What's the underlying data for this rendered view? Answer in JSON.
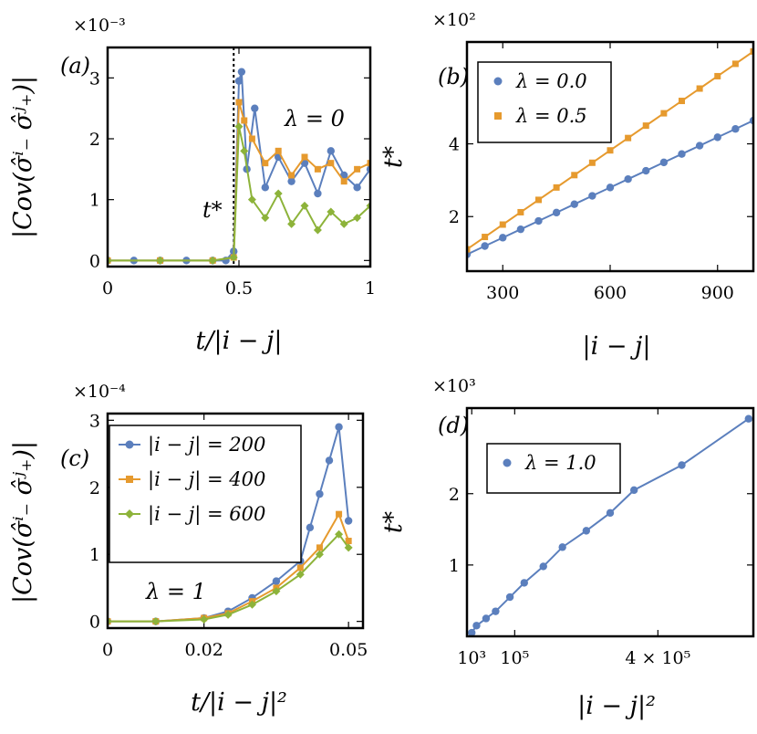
{
  "colors": {
    "blue": "#5b7fbd",
    "orange": "#e69a2e",
    "green": "#8db33a"
  },
  "chart_data": [
    {
      "panel": "(a)",
      "type": "scatter",
      "ylabel": "|Cov(σ̂ⁱ₋ σ̂ʲ₊)|",
      "xlabel": "t/|i − j|",
      "y_multiplier": "×10⁻³",
      "xlim": [
        0,
        1
      ],
      "ylim": [
        -0.1,
        3.5
      ],
      "xticks": [
        "0",
        "0.5",
        "1"
      ],
      "yticks": [
        "0",
        "1",
        "2",
        "3"
      ],
      "annotations": {
        "lambda": "λ = 0",
        "tstar": "t*"
      },
      "vline_x": 0.48,
      "series": [
        {
          "values_desc": "blue",
          "x": [
            0.0,
            0.1,
            0.2,
            0.3,
            0.4,
            0.45,
            0.48,
            0.5,
            0.51,
            0.53,
            0.56,
            0.6,
            0.65,
            0.7,
            0.75,
            0.8,
            0.85,
            0.9,
            0.95,
            1.0
          ],
          "y": [
            0.0,
            0.0,
            0.0,
            0.0,
            0.0,
            0.0,
            0.15,
            2.95,
            3.1,
            1.5,
            2.5,
            1.2,
            1.7,
            1.3,
            1.6,
            1.1,
            1.8,
            1.4,
            1.2,
            1.5
          ]
        },
        {
          "values_desc": "orange",
          "x": [
            0.0,
            0.2,
            0.4,
            0.48,
            0.5,
            0.52,
            0.55,
            0.6,
            0.65,
            0.7,
            0.75,
            0.8,
            0.85,
            0.9,
            0.95,
            1.0
          ],
          "y": [
            0.0,
            0.0,
            0.0,
            0.05,
            2.6,
            2.3,
            2.0,
            1.6,
            1.8,
            1.4,
            1.7,
            1.5,
            1.6,
            1.3,
            1.5,
            1.6
          ]
        },
        {
          "values_desc": "green",
          "x": [
            0.0,
            0.2,
            0.4,
            0.48,
            0.5,
            0.52,
            0.55,
            0.6,
            0.65,
            0.7,
            0.75,
            0.8,
            0.85,
            0.9,
            0.95,
            1.0
          ],
          "y": [
            0.0,
            0.0,
            0.0,
            0.05,
            2.2,
            1.8,
            1.0,
            0.7,
            1.1,
            0.6,
            0.9,
            0.5,
            0.8,
            0.6,
            0.7,
            0.9
          ]
        }
      ]
    },
    {
      "panel": "(b)",
      "type": "line",
      "xlabel": "|i − j|",
      "ylabel": "t*",
      "y_multiplier": "×10²",
      "xlim": [
        200,
        1000
      ],
      "ylim": [
        0.5,
        6.8
      ],
      "xticks": [
        "300",
        "600",
        "900"
      ],
      "yticks": [
        "2",
        "4"
      ],
      "series": [
        {
          "name": "λ = 0.0",
          "x": [
            200,
            250,
            300,
            350,
            400,
            450,
            500,
            550,
            600,
            650,
            700,
            750,
            800,
            850,
            900,
            950,
            1000
          ],
          "y": [
            0.96,
            1.19,
            1.42,
            1.65,
            1.88,
            2.11,
            2.34,
            2.57,
            2.8,
            3.03,
            3.26,
            3.49,
            3.72,
            3.95,
            4.18,
            4.41,
            4.64
          ]
        },
        {
          "name": "λ = 0.5",
          "x": [
            200,
            250,
            300,
            350,
            400,
            450,
            500,
            550,
            600,
            650,
            700,
            750,
            800,
            850,
            900,
            950,
            1000
          ],
          "y": [
            1.1,
            1.44,
            1.78,
            2.12,
            2.46,
            2.8,
            3.14,
            3.48,
            3.82,
            4.16,
            4.5,
            4.84,
            5.18,
            5.52,
            5.86,
            6.2,
            6.54
          ]
        }
      ]
    },
    {
      "panel": "(c)",
      "type": "scatter",
      "ylabel": "|Cov(σ̂ⁱ₋ σ̂ʲ₊)|",
      "xlabel": "t/|i − j|²",
      "y_multiplier": "×10⁻⁴",
      "xlim": [
        0,
        0.053
      ],
      "ylim": [
        -0.1,
        3.1
      ],
      "xticks": [
        "0",
        "0.02",
        "0.05"
      ],
      "yticks": [
        "0",
        "1",
        "2",
        "3"
      ],
      "annotations": {
        "lambda": "λ = 1"
      },
      "series": [
        {
          "name": "|i − j| = 200",
          "x": [
            0,
            0.01,
            0.02,
            0.025,
            0.03,
            0.035,
            0.04,
            0.042,
            0.044,
            0.046,
            0.048,
            0.05
          ],
          "y": [
            0,
            0,
            0.05,
            0.15,
            0.35,
            0.6,
            0.9,
            1.4,
            1.9,
            2.4,
            2.9,
            1.5
          ]
        },
        {
          "name": "|i − j| = 400",
          "x": [
            0,
            0.01,
            0.02,
            0.025,
            0.03,
            0.035,
            0.04,
            0.044,
            0.048,
            0.05
          ],
          "y": [
            0,
            0,
            0.05,
            0.12,
            0.3,
            0.5,
            0.8,
            1.1,
            1.6,
            1.2
          ]
        },
        {
          "name": "|i − j| = 600",
          "x": [
            0,
            0.01,
            0.02,
            0.025,
            0.03,
            0.035,
            0.04,
            0.044,
            0.048,
            0.05
          ],
          "y": [
            0,
            0,
            0.03,
            0.1,
            0.25,
            0.45,
            0.7,
            1.0,
            1.3,
            1.1
          ]
        }
      ]
    },
    {
      "panel": "(d)",
      "type": "line",
      "xlabel": "|i − j|²",
      "ylabel": "t*",
      "y_multiplier": "×10³",
      "xlim": [
        0,
        600000
      ],
      "ylim": [
        0,
        3.2
      ],
      "xticks": [
        "10³",
        "10⁵",
        "4 × 10⁵"
      ],
      "yticks": [
        "1",
        "2"
      ],
      "series": [
        {
          "name": "λ = 1.0",
          "x": [
            10000,
            20000,
            40000,
            60000,
            90000,
            120000,
            160000,
            200000,
            250000,
            300000,
            350000,
            450000,
            590000
          ],
          "y": [
            0.05,
            0.15,
            0.25,
            0.35,
            0.55,
            0.75,
            0.98,
            1.25,
            1.48,
            1.73,
            2.05,
            2.4,
            3.05
          ]
        }
      ]
    }
  ]
}
